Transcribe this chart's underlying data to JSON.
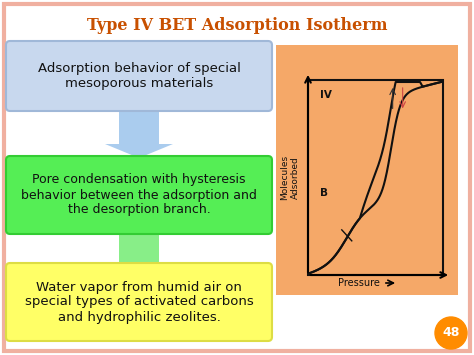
{
  "title": "Type IV BET Adsorption Isotherm",
  "title_color": "#c85000",
  "bg_color": "#ffffff",
  "border_color": "#f0b0a0",
  "box1_text": "Adsorption behavior of special\nmesoporous materials",
  "box1_bg": "#c8d8ee",
  "box1_border": "#a0b8d8",
  "box2_text": "Pore condensation with hysteresis\nbehavior between the adsorption and\nthe desorption branch.",
  "box2_bg": "#55ee55",
  "box2_border": "#33cc33",
  "box3_text": "Water vapor from humid air on\nspecial types of activated carbons\nand hydrophilic zeolites.",
  "box3_bg": "#ffff66",
  "box3_border": "#dddd44",
  "arrow1_color": "#aaccee",
  "arrow2_color": "#88ee88",
  "graph_bg": "#f5a868",
  "page_num": "48",
  "page_num_bg": "#ff8c00",
  "ylabel": "Molecules\nAdsorbed",
  "xlabel": "Pressure",
  "label_IV": "IV",
  "label_B": "B"
}
